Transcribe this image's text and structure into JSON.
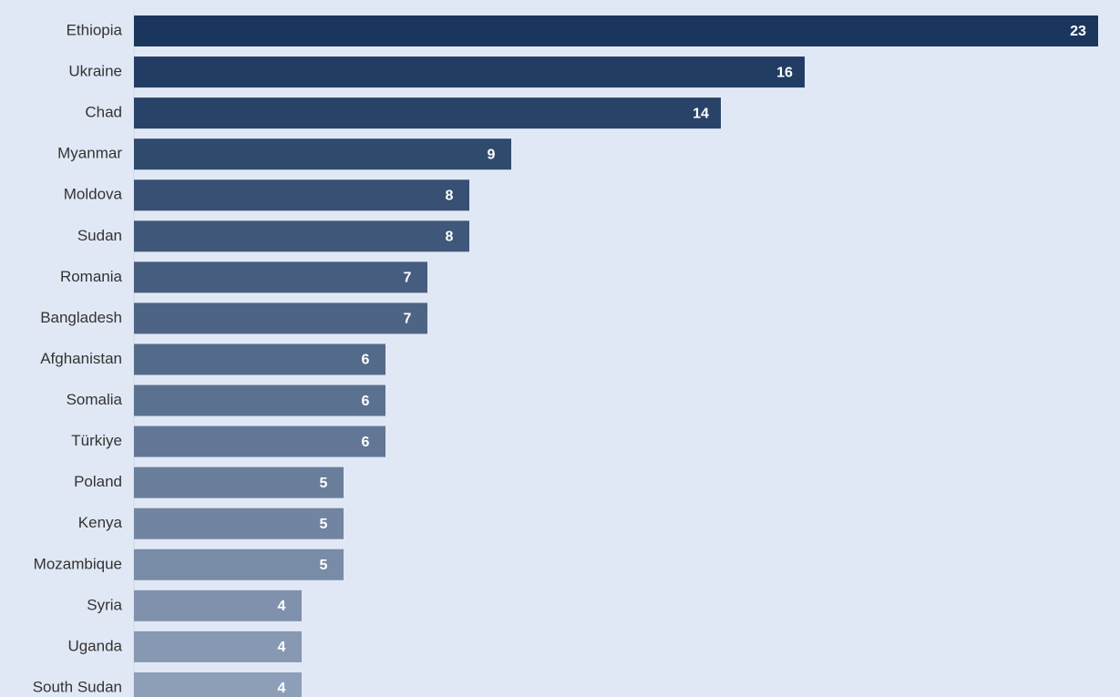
{
  "chart_data": {
    "type": "bar",
    "orientation": "horizontal",
    "categories": [
      "Ethiopia",
      "Ukraine",
      "Chad",
      "Myanmar",
      "Moldova",
      "Sudan",
      "Romania",
      "Bangladesh",
      "Afghanistan",
      "Somalia",
      "Türkiye",
      "Poland",
      "Kenya",
      "Mozambique",
      "Syria",
      "Uganda",
      "South Sudan"
    ],
    "values": [
      23,
      16,
      14,
      9,
      8,
      8,
      7,
      7,
      6,
      6,
      6,
      5,
      5,
      5,
      4,
      4,
      4
    ],
    "colors": [
      "#1b365d",
      "#223d63",
      "#294368",
      "#304a6e",
      "#375074",
      "#3f5779",
      "#465d7f",
      "#4d6485",
      "#546a8a",
      "#5b7190",
      "#627796",
      "#697e9b",
      "#7184a1",
      "#788ba7",
      "#7f91ac",
      "#8698b2",
      "#8d9eb8"
    ]
  }
}
